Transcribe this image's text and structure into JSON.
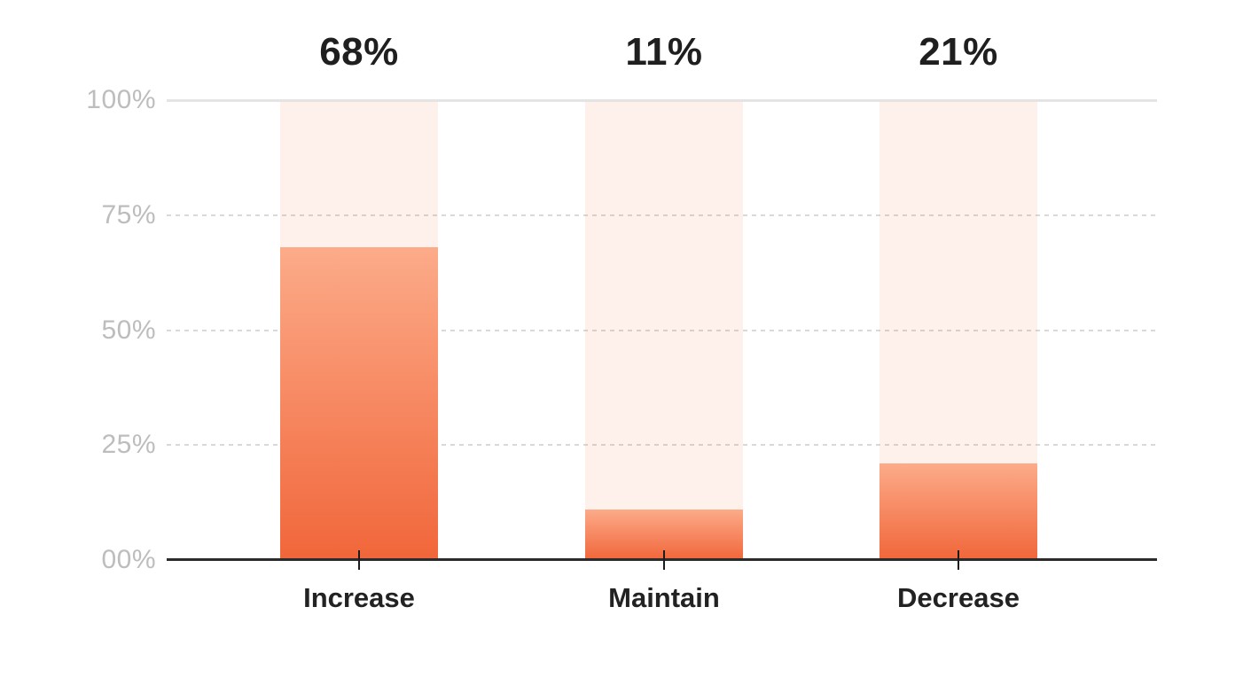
{
  "chart_data": {
    "type": "bar",
    "categories": [
      "Increase",
      "Maintain",
      "Decrease"
    ],
    "values": [
      68,
      11,
      21
    ],
    "value_labels": [
      "68%",
      "11%",
      "21%"
    ],
    "ytick_labels": [
      "100%",
      "75%",
      "50%",
      "25%",
      "00%"
    ],
    "ylim": [
      0,
      100
    ],
    "title": "",
    "xlabel": "",
    "ylabel": "",
    "grid": "horizontal; dashed at 25/50/75, solid light at 100, dark axis baseline at 0",
    "legend": "none",
    "bar_style": "full-height light pink track with orange gradient fill, value labels above bars, tick marks at bar centers on baseline"
  },
  "colors": {
    "bar_fill_top": "#fcab89",
    "bar_fill_bottom": "#f1663a",
    "bar_track": "rgba(243,106,58,0.10)",
    "grid_solid": "#e4e4e4",
    "grid_dashed": "#d9d9d9",
    "axis_line": "#2b2b2b",
    "tick": "#1c1c1c",
    "value_label": "#1f1f1f",
    "category_label": "#222222",
    "ytick_label": "#bdbdbd",
    "background": "#ffffff"
  }
}
